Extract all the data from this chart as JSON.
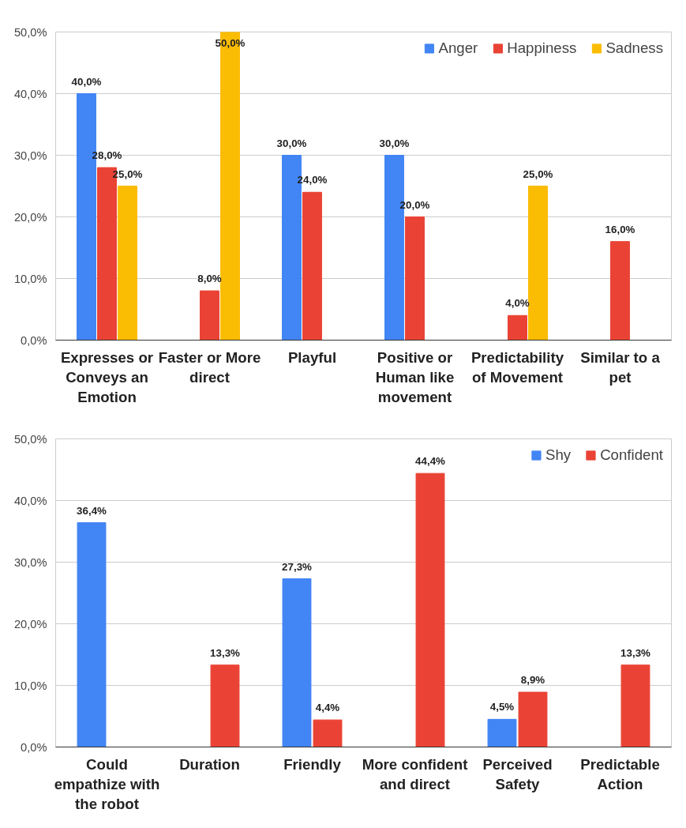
{
  "chart_data": [
    {
      "type": "bar",
      "categories": [
        "Expresses or Conveys an Emotion",
        "Faster or More direct",
        "Playful",
        "Positive or Human like movement",
        "Predictability of Movement",
        "Similar to a pet"
      ],
      "series": [
        {
          "name": "Anger",
          "color": "#4285f4",
          "values": [
            40,
            null,
            30,
            30,
            null,
            null
          ],
          "value_labels": [
            "40,0%",
            null,
            "30,0%",
            "30,0%",
            null,
            null
          ]
        },
        {
          "name": "Happiness",
          "color": "#ea4335",
          "values": [
            28,
            8,
            24,
            20,
            4,
            16
          ],
          "value_labels": [
            "28,0%",
            "8,0%",
            "24,0%",
            "20,0%",
            "4,0%",
            "16,0%"
          ]
        },
        {
          "name": "Sadness",
          "color": "#fbbc04",
          "values": [
            25,
            50,
            null,
            null,
            25,
            null
          ],
          "value_labels": [
            "25,0%",
            "50,0%",
            null,
            null,
            "25,0%",
            null
          ]
        }
      ],
      "ylim": [
        0,
        50
      ],
      "yticks": [
        {
          "value": 0,
          "label": "0,0%"
        },
        {
          "value": 10,
          "label": "10,0%"
        },
        {
          "value": 20,
          "label": "20,0%"
        },
        {
          "value": 30,
          "label": "30,0%"
        },
        {
          "value": 40,
          "label": "40,0%"
        },
        {
          "value": 50,
          "label": "50,0%"
        }
      ],
      "grid": "y",
      "legend": "top right"
    },
    {
      "type": "bar",
      "categories": [
        "Could empathize with the robot",
        "Duration",
        "Friendly",
        "More confident and direct",
        "Perceived Safety",
        "Predictable Action"
      ],
      "series": [
        {
          "name": "Shy",
          "color": "#4285f4",
          "values": [
            36.4,
            null,
            27.3,
            null,
            4.5,
            null
          ],
          "value_labels": [
            "36,4%",
            null,
            "27,3%",
            null,
            "4,5%",
            null
          ]
        },
        {
          "name": "Confident",
          "color": "#ea4335",
          "values": [
            null,
            13.3,
            4.4,
            44.4,
            8.9,
            13.3
          ],
          "value_labels": [
            null,
            "13,3%",
            "4,4%",
            "44,4%",
            "8,9%",
            "13,3%"
          ]
        }
      ],
      "ylim": [
        0,
        50
      ],
      "yticks": [
        {
          "value": 0,
          "label": "0,0%"
        },
        {
          "value": 10,
          "label": "10,0%"
        },
        {
          "value": 20,
          "label": "20,0%"
        },
        {
          "value": 30,
          "label": "30,0%"
        },
        {
          "value": 40,
          "label": "40,0%"
        },
        {
          "value": 50,
          "label": "50,0%"
        }
      ],
      "grid": "y",
      "legend": "top right"
    }
  ]
}
